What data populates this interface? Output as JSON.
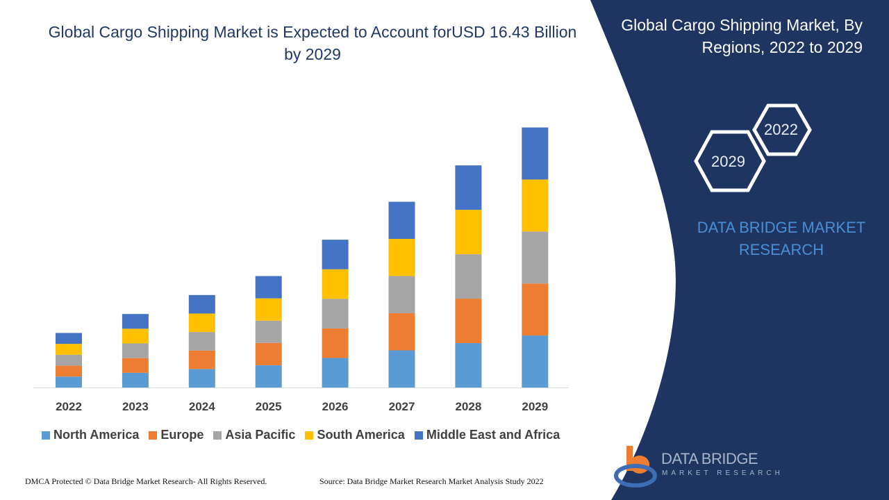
{
  "header": {
    "title": "Global Cargo Shipping Market is Expected to Account forUSD 16.43 Billion by 2029"
  },
  "side_panel": {
    "title": "Global Cargo Shipping Market, By Regions, 2022 to 2029",
    "hex_labels": [
      "2022",
      "2029"
    ],
    "brand": "DATA BRIDGE MARKET RESEARCH",
    "logo_name": "DATA BRIDGE",
    "logo_sub": "MARKET RESEARCH",
    "background_color": "#1e3461"
  },
  "footer": {
    "copyright": "DMCA Protected © Data Bridge Market Research- All Rights Reserved.",
    "source": "Source: Data Bridge Market Research Market Analysis Study 2022"
  },
  "chart_data": {
    "type": "bar",
    "stacked": true,
    "categories": [
      "2022",
      "2023",
      "2024",
      "2025",
      "2026",
      "2027",
      "2028",
      "2029"
    ],
    "series": [
      {
        "name": "North America",
        "color": "#5b9bd5",
        "values": [
          0.69,
          0.93,
          1.17,
          1.41,
          1.87,
          2.35,
          2.81,
          3.29
        ]
      },
      {
        "name": "Europe",
        "color": "#ed7d31",
        "values": [
          0.69,
          0.93,
          1.17,
          1.41,
          1.87,
          2.35,
          2.81,
          3.29
        ]
      },
      {
        "name": "Asia Pacific",
        "color": "#a5a5a5",
        "values": [
          0.69,
          0.93,
          1.17,
          1.41,
          1.87,
          2.35,
          2.81,
          3.29
        ]
      },
      {
        "name": "South America",
        "color": "#ffc000",
        "values": [
          0.69,
          0.93,
          1.17,
          1.41,
          1.87,
          2.35,
          2.81,
          3.29
        ]
      },
      {
        "name": "Middle East and Africa",
        "color": "#4472c4",
        "values": [
          0.69,
          0.93,
          1.17,
          1.41,
          1.87,
          2.35,
          2.81,
          3.29
        ]
      }
    ],
    "ylim": [
      0,
      16.43
    ],
    "grid": false,
    "legend": "bottom",
    "xlabel": "",
    "ylabel": ""
  }
}
